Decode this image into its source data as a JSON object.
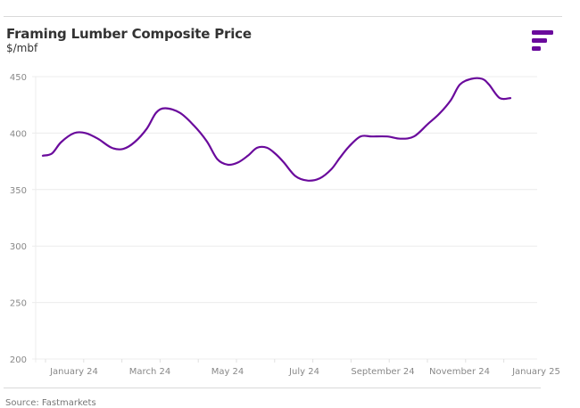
{
  "header": {
    "title": "Framing Lumber Composite Price",
    "subtitle": "$/mbf",
    "logo_icon": "fastmarkets-logo-icon"
  },
  "footer": {
    "source": "Source: Fastmarkets"
  },
  "colors": {
    "line": "#6a0a9c",
    "logo": "#6a0a9c",
    "grid": "#ececec",
    "tick_text": "#888888"
  },
  "chart_data": {
    "type": "line",
    "title": "Framing Lumber Composite Price",
    "subtitle": "$/mbf",
    "xlabel": "",
    "ylabel": "$/mbf",
    "ylim": [
      200,
      450
    ],
    "yticks": [
      200,
      250,
      300,
      350,
      400,
      450
    ],
    "xticks": [
      "January 24",
      "March 24",
      "May 24",
      "July 24",
      "September 24",
      "November 24",
      "January 25"
    ],
    "xlim": [
      "2023-12",
      "2025-01"
    ],
    "grid": true,
    "legend": "none",
    "series": [
      {
        "name": "Framing Lumber Composite Price",
        "x": [
          0.0,
          0.12,
          0.24,
          0.41,
          0.56,
          0.72,
          0.9,
          1.05,
          1.2,
          1.36,
          1.48,
          1.6,
          1.79,
          1.97,
          2.14,
          2.28,
          2.42,
          2.55,
          2.68,
          2.8,
          2.93,
          3.05,
          3.15,
          3.3,
          3.46,
          3.62,
          3.77,
          3.88,
          4.0,
          4.15,
          4.3,
          4.5,
          4.67,
          4.85,
          5.03,
          5.18,
          5.33,
          5.45,
          5.6,
          5.74,
          5.83,
          5.97,
          6.11
        ],
        "values": [
          380,
          382,
          392,
          400,
          400,
          395,
          387,
          386,
          392,
          404,
          418,
          422,
          418,
          407,
          393,
          377,
          372,
          374,
          380,
          387,
          387,
          381,
          374,
          362,
          358,
          360,
          368,
          378,
          388,
          397,
          397,
          397,
          395,
          397,
          408,
          417,
          429,
          443,
          448,
          448,
          443,
          431,
          431
        ]
      }
    ],
    "x_units": "months since January 24 (approx., estimated from plot)",
    "source": "Source: Fastmarkets"
  }
}
